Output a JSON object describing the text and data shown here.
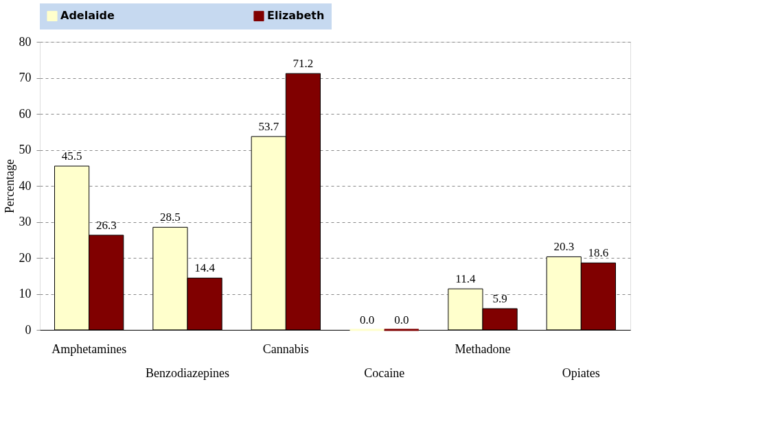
{
  "chart_data": {
    "type": "bar",
    "ylabel": "Percentage",
    "categories": [
      "Amphetamines",
      "Benzodiazepines",
      "Cannabis",
      "Cocaine",
      "Methadone",
      "Opiates"
    ],
    "series": [
      {
        "name": "Adelaide",
        "color": "#ffffcc",
        "values": [
          45.5,
          28.5,
          53.7,
          0.0,
          11.4,
          20.3
        ],
        "value_labels": [
          "45.5",
          "28.5",
          "53.7",
          "0.0",
          "11.4",
          "20.3"
        ]
      },
      {
        "name": "Elizabeth",
        "color": "#800000",
        "values": [
          26.3,
          14.4,
          71.2,
          0.0,
          5.9,
          18.6
        ],
        "value_labels": [
          "26.3",
          "14.4",
          "71.2",
          "0.0",
          "5.9",
          "18.6"
        ]
      }
    ],
    "ylim": [
      0,
      80
    ],
    "yticks": [
      0,
      10,
      20,
      30,
      40,
      50,
      60,
      70,
      80
    ],
    "grid": "y",
    "legend": "top"
  }
}
